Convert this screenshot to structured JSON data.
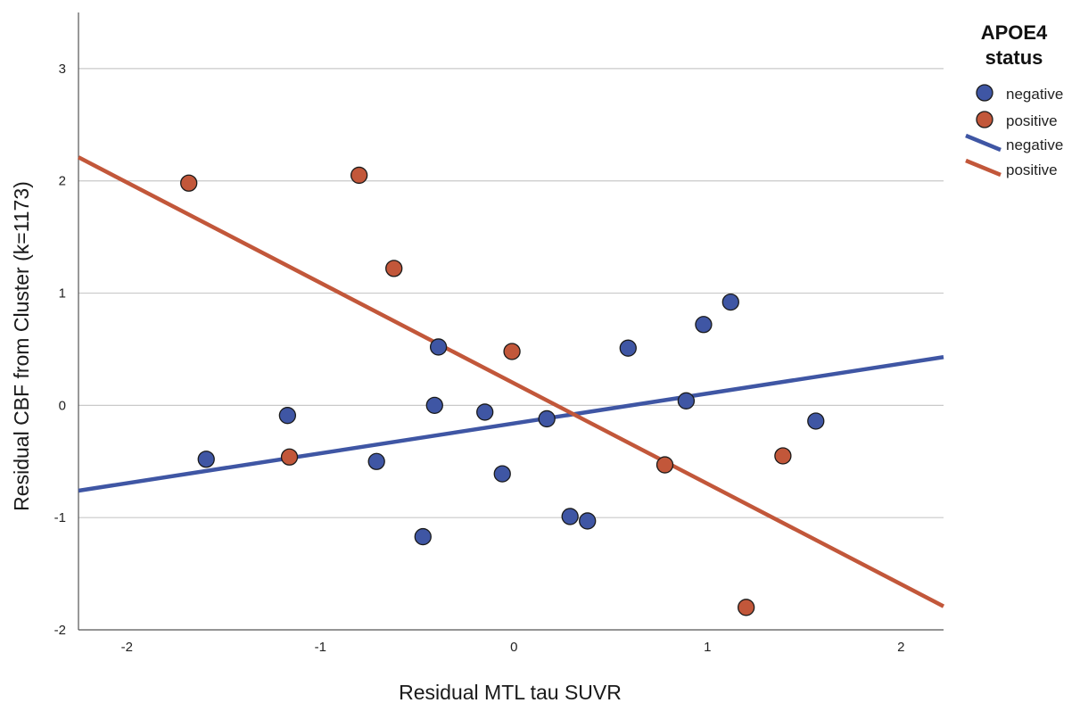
{
  "chart_data": {
    "type": "scatter",
    "xlabel": "Residual MTL tau SUVR",
    "ylabel": "Residual CBF from Cluster (k=1173)",
    "xlim": [
      -2.25,
      2.22
    ],
    "ylim": [
      -2.0,
      3.5
    ],
    "x_ticks": [
      -2,
      -1,
      0,
      1,
      2
    ],
    "y_ticks": [
      -2,
      -1,
      0,
      1,
      2,
      3
    ],
    "x_tick_labels": [
      "-2",
      "-1",
      "0",
      "1",
      "2"
    ],
    "y_tick_labels": [
      "-2",
      "-1",
      "0",
      "1",
      "2",
      "3"
    ],
    "grid": "horizontal",
    "legend": {
      "title_line1": "APOE4",
      "title_line2": "status",
      "placement": "right",
      "marker_labels": [
        "negative",
        "positive"
      ],
      "line_labels": [
        "negative",
        "positive"
      ]
    },
    "series": [
      {
        "name": "negative",
        "color": "#3f56a4",
        "points": [
          [
            -1.59,
            -0.48
          ],
          [
            -1.17,
            -0.09
          ],
          [
            -0.71,
            -0.5
          ],
          [
            -0.47,
            -1.17
          ],
          [
            -0.41,
            0.0
          ],
          [
            -0.39,
            0.52
          ],
          [
            -0.15,
            -0.06
          ],
          [
            -0.06,
            -0.61
          ],
          [
            0.17,
            -0.12
          ],
          [
            0.29,
            -0.99
          ],
          [
            0.38,
            -1.03
          ],
          [
            0.59,
            0.51
          ],
          [
            0.89,
            0.04
          ],
          [
            0.98,
            0.72
          ],
          [
            1.12,
            0.92
          ],
          [
            1.56,
            -0.14
          ]
        ],
        "fit": [
          [
            -2.25,
            -0.76
          ],
          [
            2.22,
            0.43
          ]
        ]
      },
      {
        "name": "positive",
        "color": "#c2573a",
        "points": [
          [
            -1.68,
            1.98
          ],
          [
            -1.16,
            -0.46
          ],
          [
            -0.8,
            2.05
          ],
          [
            -0.62,
            1.22
          ],
          [
            -0.01,
            0.48
          ],
          [
            0.78,
            -0.53
          ],
          [
            1.2,
            -1.8
          ],
          [
            1.39,
            -0.45
          ]
        ],
        "fit": [
          [
            -2.25,
            2.21
          ],
          [
            2.22,
            -1.79
          ]
        ]
      }
    ]
  }
}
